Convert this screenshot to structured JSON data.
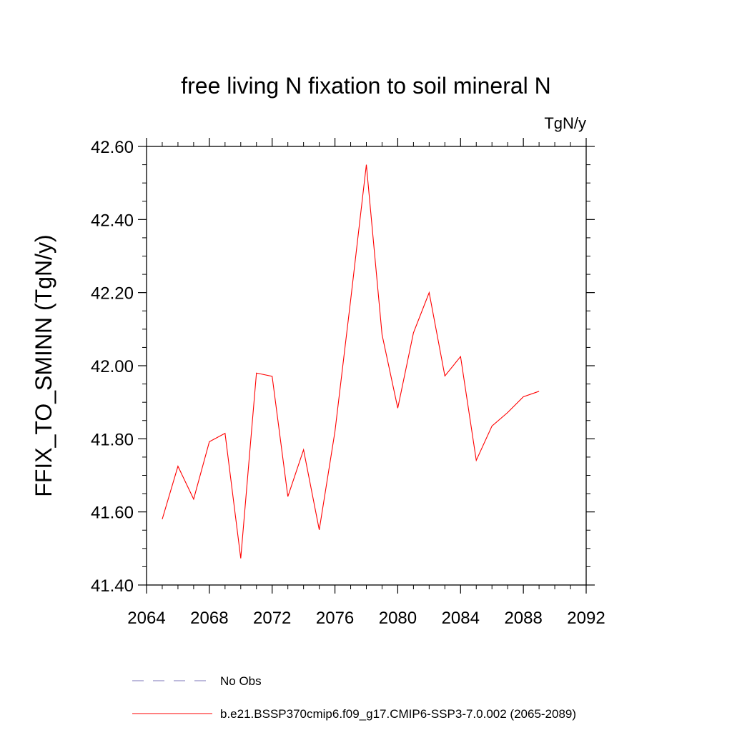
{
  "chart_data": {
    "type": "line",
    "title": "free living N fixation to soil mineral N",
    "units": "TgN/y",
    "xlabel": "",
    "ylabel": "FFIX_TO_SMINN  (TgN/y)",
    "xlim": [
      2064,
      2092
    ],
    "ylim": [
      41.4,
      42.6
    ],
    "x_ticks": [
      2064,
      2068,
      2072,
      2076,
      2080,
      2084,
      2088,
      2092
    ],
    "x_tick_labels": [
      "2064",
      "2068",
      "2072",
      "2076",
      "2080",
      "2084",
      "2088",
      "2092"
    ],
    "y_ticks": [
      41.4,
      41.6,
      41.8,
      42.0,
      42.2,
      42.4,
      42.6
    ],
    "y_tick_labels": [
      "41.40",
      "41.60",
      "41.80",
      "42.00",
      "42.20",
      "42.40",
      "42.60"
    ],
    "grid": false,
    "legend_position": "bottom",
    "series": [
      {
        "name": "b.e21.BSSP370cmip6.f09_g17.CMIP6-SSP3-7.0.002 (2065-2089)",
        "color": "#ff0000",
        "style": "solid",
        "x": [
          2065,
          2066,
          2067,
          2068,
          2069,
          2070,
          2071,
          2072,
          2073,
          2074,
          2075,
          2076,
          2077,
          2078,
          2079,
          2080,
          2081,
          2082,
          2083,
          2084,
          2085,
          2086,
          2087,
          2088,
          2089
        ],
        "y": [
          41.58,
          41.725,
          41.635,
          41.792,
          41.815,
          41.473,
          41.98,
          41.971,
          41.642,
          41.77,
          41.551,
          41.82,
          42.18,
          42.55,
          42.085,
          41.884,
          42.09,
          42.2,
          41.972,
          42.025,
          41.741,
          41.835,
          41.872,
          41.915,
          41.93
        ]
      },
      {
        "name": "No Obs",
        "color": "#7b74b8",
        "style": "dashed",
        "x": [],
        "y": []
      }
    ]
  }
}
